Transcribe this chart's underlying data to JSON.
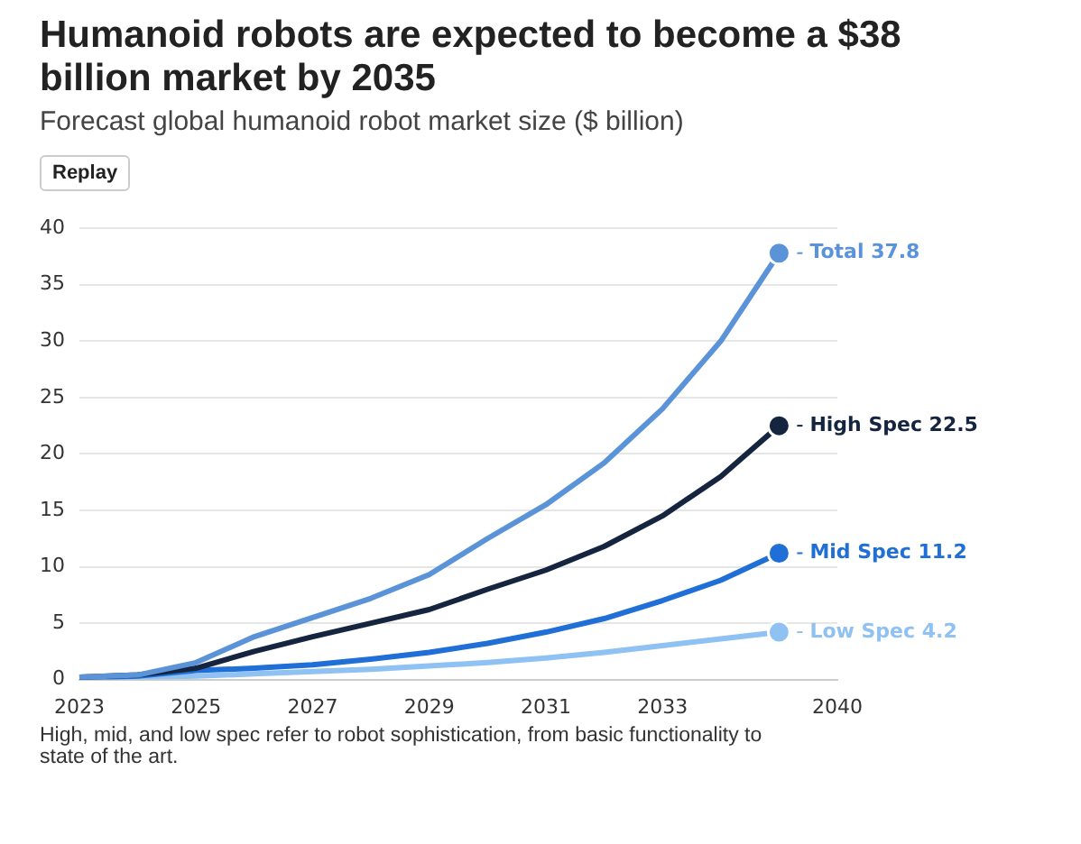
{
  "chart_data": {
    "type": "line",
    "title": "Humanoid robots are expected to become a $38 billion market by 2035",
    "subtitle": "Forecast global humanoid robot market size ($ billion)",
    "categories": [
      "2023",
      null,
      "2025",
      null,
      "2027",
      null,
      "2029",
      null,
      "2031",
      null,
      "2033",
      null,
      null,
      "2040"
    ],
    "series": [
      {
        "name": "Total",
        "color": "#5b93d8",
        "values": [
          0.2,
          0.4,
          1.5,
          3.8,
          5.5,
          7.2,
          9.3,
          12.5,
          15.5,
          19.2,
          24,
          30,
          37.8,
          null
        ],
        "value_labels": [
          null,
          null,
          null,
          null,
          null,
          null,
          null,
          null,
          null,
          null,
          null,
          null,
          "37.8",
          null
        ]
      },
      {
        "name": "High Spec",
        "color": "#152540",
        "values": [
          0.2,
          0.4,
          1,
          2.5,
          3.8,
          5,
          6.2,
          8,
          9.7,
          11.8,
          14.5,
          18,
          22.5,
          null
        ],
        "value_labels": [
          null,
          null,
          null,
          null,
          null,
          null,
          null,
          null,
          null,
          null,
          null,
          null,
          "22.5",
          null
        ]
      },
      {
        "name": "Mid Spec",
        "color": "#1f6fd6",
        "values": [
          0.1,
          0.3,
          0.8,
          1,
          1.3,
          1.8,
          2.4,
          3.2,
          4.2,
          5.4,
          7,
          8.8,
          11.2,
          null
        ],
        "value_labels": [
          null,
          null,
          null,
          null,
          null,
          null,
          null,
          null,
          null,
          null,
          null,
          null,
          "11.2",
          null
        ]
      },
      {
        "name": "Low Spec",
        "color": "#8fc1f2",
        "values": [
          0.1,
          0.2,
          0.3,
          0.5,
          0.7,
          0.9,
          1.2,
          1.5,
          1.9,
          2.4,
          3,
          3.6,
          4.2,
          null
        ],
        "value_labels": [
          null,
          null,
          null,
          null,
          null,
          null,
          null,
          null,
          null,
          null,
          null,
          null,
          "4.2",
          null
        ]
      }
    ],
    "ylim": [
      0,
      40
    ],
    "yticks": [
      0,
      5,
      10,
      15,
      20,
      25,
      30,
      35,
      40
    ],
    "grid": "y",
    "legend": false,
    "annotations": [
      "Replay",
      "High, mid, and low spec refer to robot sophistication, from basic functionality to state of the art."
    ]
  }
}
